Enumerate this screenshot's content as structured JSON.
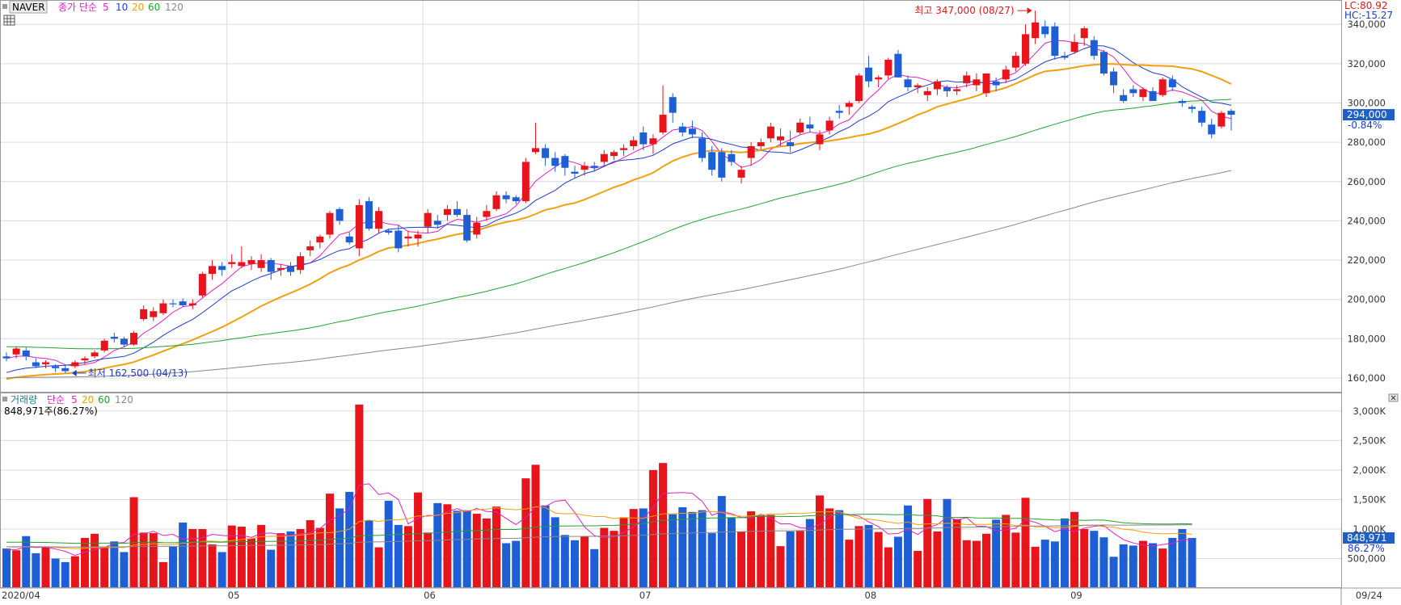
{
  "chart_data": [
    {
      "type": "candlestick",
      "symbol": "NAVER",
      "ma_label": "종가 단순",
      "ma_periods": [
        {
          "label": "5",
          "color": "#e020c0"
        },
        {
          "label": "10",
          "color": "#1f3cc8"
        },
        {
          "label": "20",
          "color": "#f0a010"
        },
        {
          "label": "60",
          "color": "#22a030"
        },
        {
          "label": "120",
          "color": "#888888"
        }
      ],
      "ylim": [
        153000,
        352000
      ],
      "yticks": [
        160000,
        180000,
        200000,
        220000,
        240000,
        260000,
        280000,
        300000,
        320000,
        340000
      ],
      "ytick_labels": [
        "160,000",
        "180,000",
        "200,000",
        "220,000",
        "240,000",
        "260,000",
        "280,000",
        "300,000",
        "320,000",
        "340,000"
      ],
      "x_labels": [
        {
          "label": "2020/04",
          "date": "2020-04-01"
        },
        {
          "label": "05",
          "date": "2020-05-04"
        },
        {
          "label": "06",
          "date": "2020-06-01"
        },
        {
          "label": "07",
          "date": "2020-07-01"
        },
        {
          "label": "08",
          "date": "2020-08-03"
        },
        {
          "label": "09",
          "date": "2020-09-01"
        }
      ],
      "last_date_label": "09/24",
      "last_price_label": "294,000",
      "change_label": "-0.84%",
      "indicators": {
        "lc": "LC:80.92",
        "hc": "HC:-15.27"
      },
      "annotations": {
        "high": {
          "text": "최고 347,000 (08/27)",
          "value": 347000
        },
        "low": {
          "text": "최저 162,500 (04/13)",
          "value": 162500
        }
      },
      "ohlc": [
        [
          171000,
          173000,
          168500,
          170000
        ],
        [
          172000,
          176000,
          170000,
          175000
        ],
        [
          174000,
          175500,
          169000,
          171000
        ],
        [
          168000,
          170000,
          165000,
          166000
        ],
        [
          167000,
          169000,
          165000,
          168000
        ],
        [
          166000,
          167000,
          163000,
          165000
        ],
        [
          165000,
          167000,
          162500,
          163500
        ],
        [
          166000,
          169000,
          165000,
          168000
        ],
        [
          169000,
          171000,
          167000,
          170000
        ],
        [
          171000,
          174000,
          170000,
          173000
        ],
        [
          174000,
          180000,
          173000,
          179000
        ],
        [
          181000,
          183000,
          178000,
          180000
        ],
        [
          180000,
          181000,
          176000,
          177000
        ],
        [
          177000,
          184000,
          176500,
          183000
        ],
        [
          190000,
          197000,
          189000,
          195000
        ],
        [
          191000,
          196000,
          189000,
          194000
        ],
        [
          193000,
          200000,
          192000,
          198000
        ],
        [
          198000,
          200000,
          196000,
          197500
        ],
        [
          199000,
          200500,
          196000,
          197000
        ],
        [
          197000,
          200000,
          195000,
          198000
        ],
        [
          202000,
          214000,
          201000,
          213000
        ],
        [
          213000,
          220000,
          210000,
          217000
        ],
        [
          217000,
          219000,
          212000,
          215000
        ],
        [
          218000,
          223000,
          216000,
          219000
        ],
        [
          217000,
          227000,
          216000,
          219000
        ],
        [
          218000,
          222000,
          215000,
          220000
        ],
        [
          216000,
          223000,
          214000,
          220000
        ],
        [
          220000,
          221000,
          210000,
          214000
        ],
        [
          215000,
          218000,
          212000,
          216000
        ],
        [
          217000,
          219000,
          212000,
          214000
        ],
        [
          215000,
          224000,
          213000,
          222000
        ],
        [
          225000,
          230000,
          222000,
          227000
        ],
        [
          229000,
          233000,
          226000,
          232000
        ],
        [
          233000,
          245000,
          231000,
          244000
        ],
        [
          246000,
          247000,
          238000,
          240000
        ],
        [
          232000,
          234000,
          228000,
          229000
        ],
        [
          226000,
          251000,
          222000,
          248000
        ],
        [
          250000,
          252000,
          235000,
          236000
        ],
        [
          236000,
          247000,
          234000,
          245000
        ],
        [
          235000,
          236000,
          233000,
          234000
        ],
        [
          235000,
          238000,
          224000,
          226000
        ],
        [
          231000,
          235000,
          227000,
          232000
        ],
        [
          231000,
          235000,
          227000,
          233000
        ],
        [
          237000,
          246000,
          234000,
          244000
        ],
        [
          240000,
          243000,
          236000,
          238000
        ],
        [
          243000,
          248000,
          240000,
          246000
        ],
        [
          246000,
          250000,
          242000,
          243000
        ],
        [
          243000,
          246000,
          229000,
          230000
        ],
        [
          233000,
          242000,
          231000,
          239000
        ],
        [
          242000,
          248000,
          240000,
          245000
        ],
        [
          246000,
          255000,
          245000,
          253000
        ],
        [
          253000,
          255000,
          249000,
          251000
        ],
        [
          252000,
          253000,
          248500,
          250000
        ],
        [
          250000,
          272000,
          249000,
          270000
        ],
        [
          275000,
          290000,
          274000,
          277000
        ],
        [
          277000,
          279000,
          268000,
          272000
        ],
        [
          272000,
          275000,
          265000,
          268000
        ],
        [
          273000,
          274000,
          263000,
          267000
        ],
        [
          265000,
          268000,
          262000,
          264000
        ],
        [
          266000,
          270000,
          263000,
          268000
        ],
        [
          268000,
          270000,
          265000,
          267000
        ],
        [
          270000,
          276000,
          268000,
          274000
        ],
        [
          273000,
          276000,
          271000,
          275000
        ],
        [
          276000,
          279000,
          273000,
          277000
        ],
        [
          278000,
          283000,
          276000,
          281000
        ],
        [
          285000,
          288000,
          276000,
          279000
        ],
        [
          279000,
          284000,
          274000,
          282000
        ],
        [
          285000,
          309000,
          284000,
          294000
        ],
        [
          303000,
          305000,
          290000,
          295000
        ],
        [
          288000,
          290000,
          283000,
          285000
        ],
        [
          287000,
          291000,
          282000,
          284000
        ],
        [
          282000,
          285000,
          270000,
          272000
        ],
        [
          275000,
          278000,
          263000,
          266000
        ],
        [
          275000,
          277000,
          260000,
          262000
        ],
        [
          274000,
          276000,
          268000,
          270000
        ],
        [
          262000,
          268000,
          259000,
          266000
        ],
        [
          272000,
          280000,
          268000,
          278000
        ],
        [
          278000,
          282000,
          276000,
          280000
        ],
        [
          282000,
          290000,
          280000,
          288000
        ],
        [
          281000,
          287000,
          278000,
          283000
        ],
        [
          280000,
          286000,
          275000,
          278000
        ],
        [
          285000,
          292000,
          284000,
          290000
        ],
        [
          289000,
          293000,
          285000,
          287000
        ],
        [
          279000,
          286000,
          276000,
          284000
        ],
        [
          286000,
          293000,
          284000,
          291000
        ],
        [
          296000,
          299000,
          292000,
          295000
        ],
        [
          298000,
          301000,
          294000,
          300000
        ],
        [
          301000,
          315000,
          300000,
          314000
        ],
        [
          318000,
          324000,
          308000,
          311000
        ],
        [
          312000,
          314000,
          308000,
          313000
        ],
        [
          314000,
          323000,
          312000,
          322000
        ],
        [
          325000,
          327000,
          313000,
          313000
        ],
        [
          312000,
          314000,
          306000,
          308000
        ],
        [
          308000,
          310000,
          305000,
          309000
        ],
        [
          304000,
          308000,
          301000,
          306000
        ],
        [
          307000,
          312000,
          304000,
          311000
        ],
        [
          308000,
          309000,
          303000,
          306000
        ],
        [
          306000,
          309000,
          304000,
          307000
        ],
        [
          310000,
          316000,
          308000,
          314000
        ],
        [
          309000,
          315000,
          306000,
          312000
        ],
        [
          305000,
          315000,
          303000,
          315000
        ],
        [
          311000,
          313000,
          306000,
          309000
        ],
        [
          312000,
          319000,
          310000,
          317000
        ],
        [
          318000,
          326000,
          316000,
          324000
        ],
        [
          320000,
          340000,
          319000,
          335000
        ],
        [
          333000,
          347000,
          330000,
          341000
        ],
        [
          339000,
          342000,
          333000,
          335000
        ],
        [
          339000,
          341000,
          322000,
          324000
        ],
        [
          324000,
          326000,
          322000,
          323000
        ],
        [
          326000,
          335000,
          325000,
          331000
        ],
        [
          333000,
          339000,
          329000,
          338000
        ],
        [
          332000,
          334000,
          322000,
          324000
        ],
        [
          326000,
          327000,
          314000,
          315000
        ],
        [
          316000,
          318000,
          305000,
          309000
        ],
        [
          304000,
          307000,
          300000,
          301000
        ],
        [
          307000,
          309000,
          303000,
          305000
        ],
        [
          303000,
          308000,
          301000,
          307000
        ],
        [
          306000,
          308000,
          301000,
          301000
        ],
        [
          304000,
          313000,
          303000,
          312000
        ],
        [
          312000,
          314000,
          306000,
          308000
        ],
        [
          301000,
          302000,
          298000,
          300000
        ],
        [
          298000,
          299000,
          295000,
          297000
        ],
        [
          296000,
          298000,
          288000,
          290000
        ],
        [
          289000,
          292000,
          282000,
          284000
        ],
        [
          288000,
          296000,
          287000,
          295000
        ],
        [
          296000,
          297000,
          286000,
          294000
        ]
      ]
    },
    {
      "type": "bar",
      "series_label": "거래량",
      "ma_label": "단순",
      "ma_periods": [
        {
          "label": "5",
          "color": "#e020c0"
        },
        {
          "label": "20",
          "color": "#f0a010"
        },
        {
          "label": "60",
          "color": "#22a030"
        },
        {
          "label": "120",
          "color": "#888888"
        }
      ],
      "current_label": "848,971주(86.27%)",
      "last_value_label": "848,971",
      "last_pct_label": "86.27%",
      "ylim": [
        0,
        3300000
      ],
      "yticks": [
        500000,
        1000000,
        1500000,
        2000000,
        2500000,
        3000000
      ],
      "ytick_labels": [
        "500,000",
        "1,000K",
        "1,500K",
        "2,000K",
        "2,500K",
        "3,000K"
      ],
      "volumes": [
        670000,
        640000,
        880000,
        590000,
        700000,
        500000,
        440000,
        540000,
        850000,
        920000,
        690000,
        790000,
        610000,
        1540000,
        940000,
        930000,
        440000,
        700000,
        1110000,
        1000000,
        1000000,
        740000,
        610000,
        1060000,
        1040000,
        840000,
        1070000,
        650000,
        930000,
        960000,
        1000000,
        1150000,
        1020000,
        1600000,
        1350000,
        1630000,
        3110000,
        1150000,
        690000,
        1480000,
        1070000,
        1050000,
        1620000,
        940000,
        1440000,
        1420000,
        1310000,
        1320000,
        1260000,
        1180000,
        1380000,
        760000,
        800000,
        1860000,
        2090000,
        1400000,
        1200000,
        900000,
        810000,
        870000,
        660000,
        1020000,
        970000,
        1200000,
        1340000,
        1350000,
        2000000,
        2120000,
        1250000,
        1370000,
        1290000,
        1320000,
        930000,
        1560000,
        1200000,
        960000,
        1300000,
        1230000,
        1240000,
        710000,
        960000,
        970000,
        1170000,
        1570000,
        1350000,
        1320000,
        820000,
        1050000,
        1070000,
        950000,
        690000,
        870000,
        1400000,
        630000,
        1510000,
        960000,
        1510000,
        1170000,
        810000,
        800000,
        920000,
        1160000,
        1240000,
        940000,
        1530000,
        700000,
        820000,
        790000,
        1180000,
        1290000,
        1000000,
        970000,
        860000,
        530000,
        740000,
        720000,
        800000,
        760000,
        670000,
        850000,
        1000000,
        848971
      ]
    }
  ]
}
